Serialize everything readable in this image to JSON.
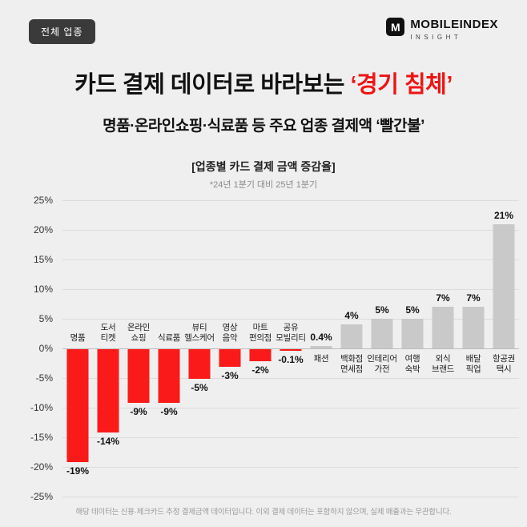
{
  "header": {
    "badge": "전체 업종",
    "logo": {
      "icon": "M",
      "name": "MOBILEINDEX",
      "sub": "INSIGHT"
    }
  },
  "title": {
    "prefix": "카드 결제 데이터로 바라보는 ",
    "highlight": "‘경기 침체’",
    "highlight_color": "#f01414"
  },
  "subtitle": "명품·온라인쇼핑·식료품 등 주요 업종 결제액 ‘빨간불’",
  "chart_header": {
    "title": "[업종별 카드 결제 금액 증감율]",
    "note": "*24년 1분기 대비 25년 1분기"
  },
  "footer": "해당 데이터는 신용·체크카드 추정 결제금액 데이터입니다. 이외 결제 데이터는 포함하지 않으며, 실제 매출과는 무관합니다.",
  "chart_data": {
    "type": "bar",
    "title": "[업종별 카드 결제 금액 증감율]",
    "subtitle": "*24년 1분기 대비 25년 1분기",
    "ylim": [
      -25,
      25
    ],
    "ytick_values": [
      25,
      20,
      15,
      10,
      5,
      0,
      -5,
      -10,
      -15,
      -20,
      -25
    ],
    "ytick_labels": [
      "25%",
      "20%",
      "15%",
      "10%",
      "5%",
      "0%",
      "-5%",
      "-10%",
      "-15%",
      "-20%",
      "-25%"
    ],
    "categories": [
      "명품",
      "도서\n티켓",
      "온라인\n쇼핑",
      "식료품",
      "뷰티\n헬스케어",
      "영상\n음악",
      "마트\n편의점",
      "공유\n모빌리티",
      "패션",
      "백화점\n면세점",
      "인테리어\n가전",
      "여행\n숙박",
      "외식\n브랜드",
      "배달\n픽업",
      "항공권\n택시"
    ],
    "values": [
      -19,
      -14,
      -9,
      -9,
      -5,
      -3,
      -2,
      -0.1,
      0.4,
      4,
      5,
      5,
      7,
      7,
      21
    ],
    "value_labels": [
      "-19%",
      "-14%",
      "-9%",
      "-9%",
      "-5%",
      "-3%",
      "-2%",
      "-0.1%",
      "0.4%",
      "4%",
      "5%",
      "5%",
      "7%",
      "7%",
      "21%"
    ],
    "negative_color": "#fb1a1a",
    "positive_color": "#c9c9c9",
    "grid": true,
    "legend": false
  }
}
